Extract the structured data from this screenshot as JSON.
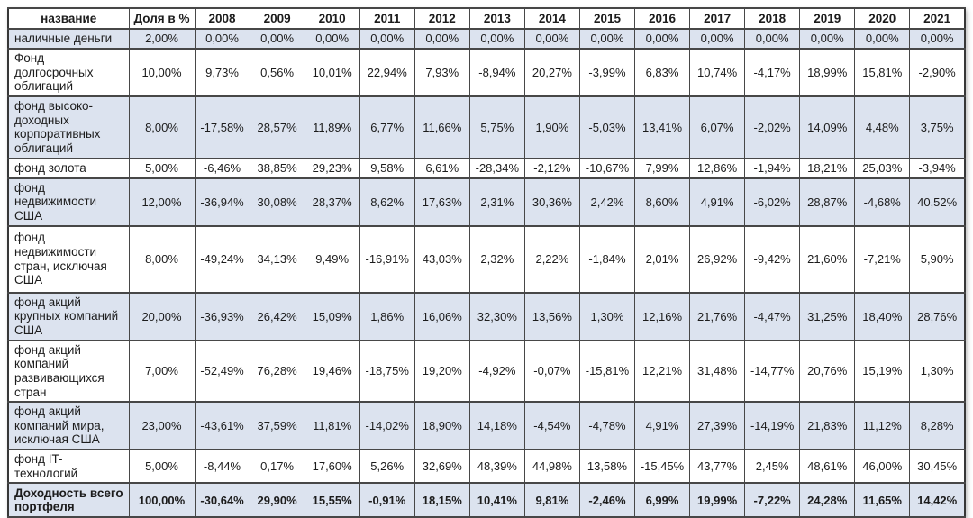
{
  "table": {
    "columns": [
      "название",
      "Доля в %",
      "2008",
      "2009",
      "2010",
      "2011",
      "2012",
      "2013",
      "2014",
      "2015",
      "2016",
      "2017",
      "2018",
      "2019",
      "2020",
      "2021"
    ],
    "rows": [
      {
        "name": "наличные деньги",
        "share": "2,00%",
        "shaded": true,
        "total": false,
        "values": [
          "0,00%",
          "0,00%",
          "0,00%",
          "0,00%",
          "0,00%",
          "0,00%",
          "0,00%",
          "0,00%",
          "0,00%",
          "0,00%",
          "0,00%",
          "0,00%",
          "0,00%",
          "0,00%"
        ]
      },
      {
        "name": "Фонд долгосрочных\nоблигаций",
        "share": "10,00%",
        "shaded": false,
        "total": false,
        "values": [
          "9,73%",
          "0,56%",
          "10,01%",
          "22,94%",
          "7,93%",
          "-8,94%",
          "20,27%",
          "-3,99%",
          "6,83%",
          "10,74%",
          "-4,17%",
          "18,99%",
          "15,81%",
          "-2,90%"
        ]
      },
      {
        "name": "фонд высоко-\nдоходных\nкорпоративных\nоблигаций",
        "share": "8,00%",
        "shaded": true,
        "total": false,
        "values": [
          "-17,58%",
          "28,57%",
          "11,89%",
          "6,77%",
          "11,66%",
          "5,75%",
          "1,90%",
          "-5,03%",
          "13,41%",
          "6,07%",
          "-2,02%",
          "14,09%",
          "4,48%",
          "3,75%"
        ]
      },
      {
        "name": "фонд золота",
        "share": "5,00%",
        "shaded": false,
        "total": false,
        "values": [
          "-6,46%",
          "38,85%",
          "29,23%",
          "9,58%",
          "6,61%",
          "-28,34%",
          "-2,12%",
          "-10,67%",
          "7,99%",
          "12,86%",
          "-1,94%",
          "18,21%",
          "25,03%",
          "-3,94%"
        ]
      },
      {
        "name": "фонд\nнедвижимости США",
        "share": "12,00%",
        "shaded": true,
        "total": false,
        "values": [
          "-36,94%",
          "30,08%",
          "28,37%",
          "8,62%",
          "17,63%",
          "2,31%",
          "30,36%",
          "2,42%",
          "8,60%",
          "4,91%",
          "-6,02%",
          "28,87%",
          "-4,68%",
          "40,52%"
        ]
      },
      {
        "name": "фонд\nнедвижимости\nстран, исключая\nСША",
        "share": "8,00%",
        "shaded": false,
        "total": false,
        "values": [
          "-49,24%",
          "34,13%",
          "9,49%",
          "-16,91%",
          "43,03%",
          "2,32%",
          "2,22%",
          "-1,84%",
          "2,01%",
          "26,92%",
          "-9,42%",
          "21,60%",
          "-7,21%",
          "5,90%"
        ]
      },
      {
        "name": "фонд акций\nкрупных компаний\nСША",
        "share": "20,00%",
        "shaded": true,
        "total": false,
        "values": [
          "-36,93%",
          "26,42%",
          "15,09%",
          "1,86%",
          "16,06%",
          "32,30%",
          "13,56%",
          "1,30%",
          "12,16%",
          "21,76%",
          "-4,47%",
          "31,25%",
          "18,40%",
          "28,76%"
        ]
      },
      {
        "name": "фонд акций\nкомпаний\nразвивающихся\nстран",
        "share": "7,00%",
        "shaded": false,
        "total": false,
        "values": [
          "-52,49%",
          "76,28%",
          "19,46%",
          "-18,75%",
          "19,20%",
          "-4,92%",
          "-0,07%",
          "-15,81%",
          "12,21%",
          "31,48%",
          "-14,77%",
          "20,76%",
          "15,19%",
          "1,30%"
        ]
      },
      {
        "name": "фонд акций\nкомпаний мира,\nисключая США",
        "share": "23,00%",
        "shaded": true,
        "total": false,
        "values": [
          "-43,61%",
          "37,59%",
          "11,81%",
          "-14,02%",
          "18,90%",
          "14,18%",
          "-4,54%",
          "-4,78%",
          "4,91%",
          "27,39%",
          "-14,19%",
          "21,83%",
          "11,12%",
          "8,28%"
        ]
      },
      {
        "name": "фонд IT-технологий",
        "share": "5,00%",
        "shaded": false,
        "total": false,
        "values": [
          "-8,44%",
          "0,17%",
          "17,60%",
          "5,26%",
          "32,69%",
          "48,39%",
          "44,98%",
          "13,58%",
          "-15,45%",
          "43,77%",
          "2,45%",
          "48,61%",
          "46,00%",
          "30,45%"
        ]
      },
      {
        "name": "Доходность всего\nпортфеля",
        "share": "100,00%",
        "shaded": true,
        "total": true,
        "values": [
          "-30,64%",
          "29,90%",
          "15,55%",
          "-0,91%",
          "18,15%",
          "10,41%",
          "9,81%",
          "-2,46%",
          "6,99%",
          "19,99%",
          "-7,22%",
          "24,28%",
          "11,65%",
          "14,42%"
        ]
      }
    ]
  },
  "colors": {
    "row_shade": "#dce3ef",
    "border": "#474747",
    "text": "#1c1c1c"
  }
}
